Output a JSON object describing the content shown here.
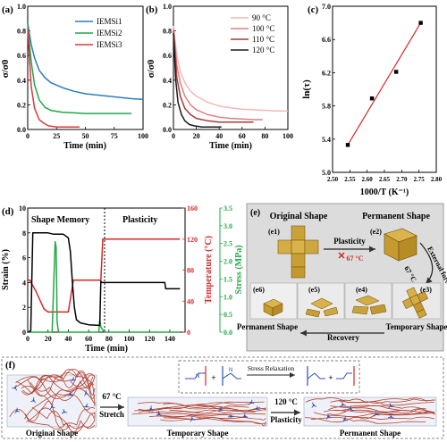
{
  "panel_labels": {
    "a": "(a)",
    "b": "(b)",
    "c": "(c)",
    "d": "(d)",
    "e": "(e)",
    "f": "(f)"
  },
  "colors": {
    "iemsi1": "#2b7bbf",
    "iemsi2": "#1fa84a",
    "iemsi3": "#d93a3a",
    "t90": "#f3b8b8",
    "t100": "#e07f7f",
    "t110": "#a23b3b",
    "t120": "#1a1a1a",
    "fit_line": "#d62828",
    "strain": "#000000",
    "temperature": "#d62828",
    "stress": "#22a845",
    "photo_bg": "#dcdcdc",
    "chain": "#b5412f",
    "node": "#2b4fb8"
  },
  "chart_data": [
    {
      "id": "a",
      "type": "line",
      "xlabel": "Time (min)",
      "ylabel": "σ/σ0",
      "xlim": [
        0,
        100
      ],
      "ylim": [
        0.0,
        1.0
      ],
      "xticks": [
        "0",
        "25",
        "50",
        "75",
        "100"
      ],
      "yticks": [
        "0.0",
        "0.2",
        "0.4",
        "0.6",
        "0.8",
        "1.0"
      ],
      "legend": "top-right",
      "series": [
        {
          "name": "IEMSi1",
          "x": [
            0,
            3,
            6,
            10,
            15,
            20,
            30,
            40,
            50,
            60,
            70,
            80,
            90,
            100
          ],
          "y": [
            0.86,
            0.69,
            0.58,
            0.48,
            0.42,
            0.38,
            0.34,
            0.31,
            0.29,
            0.28,
            0.27,
            0.26,
            0.25,
            0.245
          ]
        },
        {
          "name": "IEMSi2",
          "x": [
            0,
            3,
            6,
            10,
            15,
            20,
            30,
            40,
            50,
            60,
            70,
            80,
            90
          ],
          "y": [
            0.84,
            0.55,
            0.36,
            0.24,
            0.18,
            0.155,
            0.14,
            0.135,
            0.13,
            0.13,
            0.13,
            0.13,
            0.13
          ]
        },
        {
          "name": "IEMSi3",
          "x": [
            0,
            3,
            6,
            10,
            14,
            18,
            25,
            35,
            45
          ],
          "y": [
            0.82,
            0.35,
            0.17,
            0.08,
            0.05,
            0.03,
            0.02,
            0.02,
            0.02
          ]
        }
      ]
    },
    {
      "id": "b",
      "type": "line",
      "xlabel": "Time (min)",
      "ylabel": "σ/σ0",
      "xlim": [
        0,
        100
      ],
      "ylim": [
        0.0,
        1.0
      ],
      "xticks": [
        "0",
        "20",
        "40",
        "60",
        "80",
        "100"
      ],
      "yticks": [
        "0.0",
        "0.2",
        "0.4",
        "0.6",
        "0.8",
        "1.0"
      ],
      "legend": "top-right",
      "series": [
        {
          "name": "90 °C",
          "x": [
            0,
            3,
            6,
            10,
            15,
            20,
            30,
            40,
            50,
            60,
            70,
            80,
            90,
            100
          ],
          "y": [
            0.84,
            0.6,
            0.47,
            0.38,
            0.31,
            0.27,
            0.22,
            0.19,
            0.175,
            0.165,
            0.16,
            0.155,
            0.15,
            0.15
          ]
        },
        {
          "name": "100 °C",
          "x": [
            0,
            3,
            6,
            10,
            15,
            20,
            30,
            40,
            50,
            60,
            70,
            78
          ],
          "y": [
            0.82,
            0.52,
            0.38,
            0.27,
            0.2,
            0.16,
            0.12,
            0.1,
            0.09,
            0.085,
            0.08,
            0.08
          ]
        },
        {
          "name": "110 °C",
          "x": [
            0,
            3,
            6,
            10,
            15,
            20,
            30,
            40,
            50,
            60,
            70
          ],
          "y": [
            0.8,
            0.42,
            0.27,
            0.17,
            0.12,
            0.09,
            0.07,
            0.06,
            0.06,
            0.06,
            0.06
          ]
        },
        {
          "name": "120 °C",
          "x": [
            0,
            2,
            4,
            7,
            10,
            14,
            18,
            25,
            35,
            42
          ],
          "y": [
            0.78,
            0.4,
            0.22,
            0.12,
            0.07,
            0.04,
            0.03,
            0.02,
            0.02,
            0.02
          ]
        }
      ]
    },
    {
      "id": "c",
      "type": "scatter",
      "xlabel": "1000/T (K⁻¹)",
      "ylabel": "ln(τ)",
      "xlim": [
        2.5,
        2.8
      ],
      "ylim": [
        5.0,
        7.0
      ],
      "xticks": [
        "2.50",
        "2.55",
        "2.60",
        "2.65",
        "2.70",
        "2.75",
        "2.80"
      ],
      "yticks": [
        "5.0",
        "5.4",
        "5.8",
        "6.2",
        "6.6",
        "7.0"
      ],
      "points": {
        "x": [
          2.544,
          2.614,
          2.684,
          2.755
        ],
        "y": [
          5.33,
          5.89,
          6.21,
          6.8
        ]
      },
      "fit": {
        "x": [
          2.544,
          2.755
        ],
        "y": [
          5.33,
          6.8
        ]
      }
    },
    {
      "id": "d",
      "type": "line",
      "xlabel": "Time (min)",
      "ylabel": "Strain (%)",
      "y2label": "Temperature (°C)",
      "y3label": "Stress (MPa)",
      "xlim": [
        0,
        155
      ],
      "ylim": [
        0,
        10
      ],
      "y2lim": [
        0,
        160
      ],
      "y3lim": [
        0,
        3.5
      ],
      "xticks": [
        "0",
        "20",
        "40",
        "60",
        "80",
        "100",
        "120",
        "140"
      ],
      "yticks": [
        "0",
        "2",
        "4",
        "6",
        "8",
        "10"
      ],
      "y2ticks": [
        "0",
        "40",
        "80",
        "120",
        "160"
      ],
      "y3ticks": [
        "0.0",
        "0.5",
        "1.0",
        "1.5",
        "2.0",
        "2.5",
        "3.0",
        "3.5"
      ],
      "region_labels": [
        "Shape Memory",
        "Plasticity"
      ],
      "divider_x": 72,
      "series": [
        {
          "name": "Strain",
          "axis": "left",
          "x": [
            0,
            3,
            5,
            20,
            25,
            35,
            40,
            42,
            44,
            46,
            48,
            52,
            60,
            70,
            71,
            72,
            73,
            80,
            100,
            120,
            135,
            136,
            150
          ],
          "y": [
            0,
            0.1,
            8.0,
            8.0,
            7.9,
            7.9,
            7.6,
            6.5,
            4.0,
            2.0,
            1.0,
            0.75,
            0.6,
            0.55,
            0.55,
            4.1,
            4.0,
            4.0,
            4.0,
            4.0,
            4.0,
            3.5,
            3.5
          ]
        },
        {
          "name": "Temperature",
          "axis": "right",
          "x": [
            0,
            2,
            8,
            16,
            20,
            23,
            40,
            45,
            48,
            70,
            72,
            74,
            150
          ],
          "y": [
            67,
            67,
            53,
            30,
            26,
            26,
            26,
            67,
            67,
            67,
            67,
            120,
            120
          ]
        },
        {
          "name": "Stress",
          "axis": "right2",
          "x": [
            0,
            8,
            24,
            27,
            28,
            29,
            30,
            31,
            45,
            70,
            71,
            72,
            74,
            76,
            80,
            150
          ],
          "y": [
            0,
            0,
            0,
            2.55,
            2.4,
            0.3,
            0.05,
            0,
            0,
            0,
            0.35,
            0.15,
            0.05,
            0,
            0,
            0
          ]
        }
      ]
    }
  ],
  "panel_e": {
    "original_title": "Original Shape",
    "permanent_title": "Permanent Shape",
    "arrow_plasticity": "Plasticity",
    "temp_cross": "67 °C",
    "external_force": "External force",
    "external_temp": "67 °C",
    "photo_labels": [
      "(e1)",
      "(e2)",
      "(e3)",
      "(e4)",
      "(e5)",
      "(e6)"
    ],
    "permanent_bottom": "Permanent Shape",
    "recovery": "Recovery",
    "temporary": "Temporary Shape"
  },
  "panel_f": {
    "stress_relaxation": "Stress Relaxation",
    "plus1": "+",
    "plus2": "+",
    "step1_temp": "67 °C",
    "step1_action": "Stretch",
    "step2_temp": "120 °C",
    "step2_action": "Plasticity",
    "labels": [
      "Original Shape",
      "Temporary Shape",
      "Permanent Shape"
    ]
  }
}
